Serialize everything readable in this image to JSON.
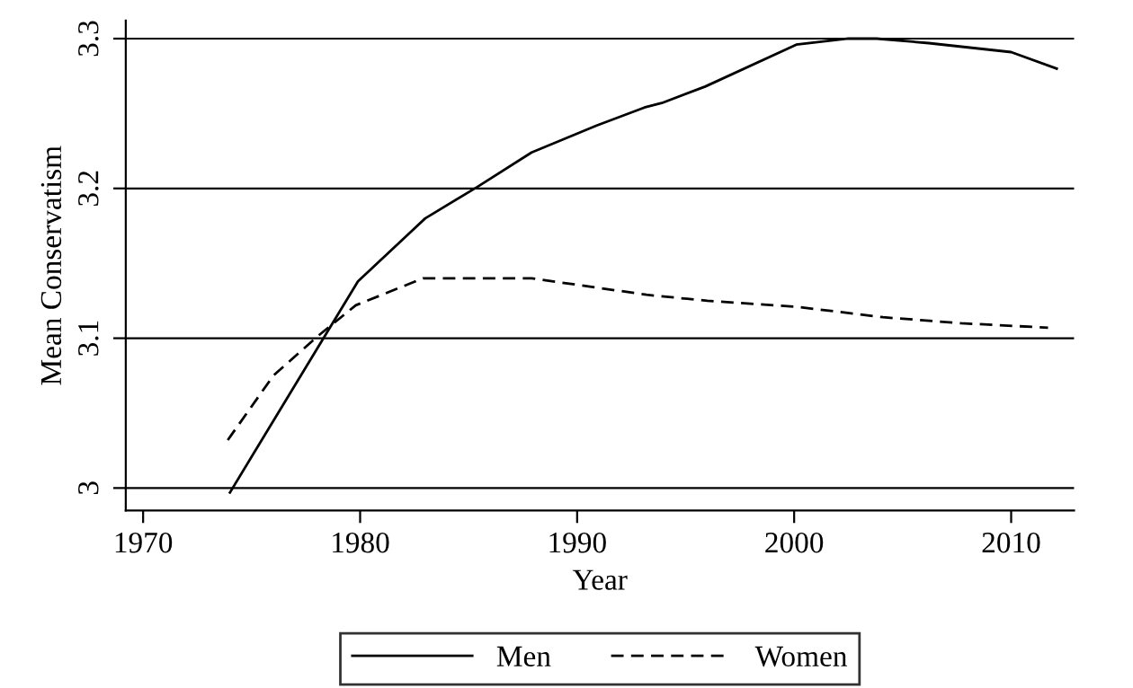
{
  "chart_data": {
    "type": "line",
    "xlabel": "Year",
    "ylabel": "Mean Conservatism",
    "xlim": [
      1969.2,
      2012.9
    ],
    "ylim": [
      2.985,
      3.312
    ],
    "xticks": [
      1970,
      1980,
      1990,
      2000,
      2010
    ],
    "yticks": [
      3,
      3.1,
      3.2,
      3.3
    ],
    "grid": "y",
    "legend": "bottom",
    "marker": "none",
    "series": [
      {
        "name": "Men",
        "color": "#000000",
        "line_style": "solid",
        "x": [
          1974.0,
          1979.9,
          1983.0,
          1985.4,
          1987.9,
          1990.9,
          1993.1,
          1993.9,
          1995.9,
          2000.1,
          2002.5,
          2003.8,
          2006.2,
          2010.0,
          2012.1
        ],
        "values": [
          2.997,
          3.138,
          3.18,
          3.201,
          3.224,
          3.242,
          3.254,
          3.257,
          3.268,
          3.296,
          3.3,
          3.3,
          3.297,
          3.291,
          3.28
        ]
      },
      {
        "name": "Women",
        "color": "#000000",
        "line_style": "dashed",
        "x": [
          1973.9,
          1976.0,
          1978.1,
          1979.8,
          1982.9,
          1987.9,
          1993.2,
          1996.0,
          2000.1,
          2004.1,
          2007.7,
          2011.7
        ],
        "values": [
          3.032,
          3.075,
          3.102,
          3.122,
          3.14,
          3.14,
          3.129,
          3.125,
          3.121,
          3.114,
          3.11,
          3.107
        ]
      }
    ]
  }
}
